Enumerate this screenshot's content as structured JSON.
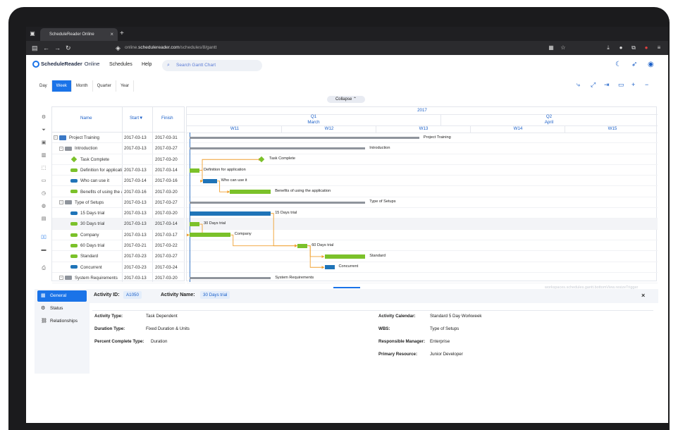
{
  "browser": {
    "tab_title": "ScheduleReader Online",
    "tab_close": "×",
    "new_tab": "+",
    "url_prefix": "online.",
    "url_domain": "schedulereader.com",
    "url_path": "/schedules/8/gantt"
  },
  "app": {
    "logo_bold": "ScheduleReader",
    "logo_light": "Online",
    "menu": [
      "Schedules",
      "Help"
    ],
    "search_placeholder": "Search Gantt Chart"
  },
  "views": [
    "Day",
    "Week",
    "Month",
    "Quarter",
    "Year"
  ],
  "active_view": "Week",
  "collapse_label": "Collapse",
  "grid": {
    "headers": {
      "name": "Name",
      "start": "Start▼",
      "finish": "Finish"
    },
    "rows": [
      {
        "name": "Project Training",
        "start": "2017-03-13",
        "finish": "2017-03-31",
        "icon": "folder"
      },
      {
        "name": "Introduction",
        "start": "2017-03-13",
        "finish": "2017-03-27",
        "icon": "summary"
      },
      {
        "name": "Task Complete",
        "start": "",
        "finish": "2017-03-20",
        "icon": "milestone"
      },
      {
        "name": "Definition for application",
        "start": "2017-03-13",
        "finish": "2017-03-14",
        "icon": "green"
      },
      {
        "name": "Who can use it",
        "start": "2017-03-14",
        "finish": "2017-03-16",
        "icon": "blue"
      },
      {
        "name": "Benefits of using the application",
        "start": "2017-03-16",
        "finish": "2017-03-20",
        "icon": "green"
      },
      {
        "name": "Type of Setups",
        "start": "2017-03-13",
        "finish": "2017-03-27",
        "icon": "summary"
      },
      {
        "name": "15 Days trial",
        "start": "2017-03-13",
        "finish": "2017-03-20",
        "icon": "blue"
      },
      {
        "name": "30 Days trial",
        "start": "2017-03-13",
        "finish": "2017-03-14",
        "icon": "green"
      },
      {
        "name": "Company",
        "start": "2017-03-13",
        "finish": "2017-03-17",
        "icon": "green"
      },
      {
        "name": "60 Days trial",
        "start": "2017-03-21",
        "finish": "2017-03-22",
        "icon": "green"
      },
      {
        "name": "Standard",
        "start": "2017-03-23",
        "finish": "2017-03-27",
        "icon": "green"
      },
      {
        "name": "Concurrent",
        "start": "2017-03-23",
        "finish": "2017-03-24",
        "icon": "blue"
      },
      {
        "name": "System Requirements",
        "start": "2017-03-13",
        "finish": "2017-03-20",
        "icon": "summary"
      }
    ]
  },
  "timeline": {
    "year": "2017",
    "quarters": [
      {
        "q": "Q1",
        "m": "March"
      },
      {
        "q": "Q2",
        "m": "April"
      }
    ],
    "weeks": [
      "W11",
      "W12",
      "W13",
      "W14",
      "W15"
    ]
  },
  "bar_labels": [
    "Project Training",
    "Introduction",
    "Task Complete",
    "Definition for application",
    "Who can use it",
    "Benefits of using the application",
    "Type of Setups",
    "15 Days trial",
    "30 Days trial",
    "Company",
    "60 Days trial",
    "Standard",
    "Concurrent",
    "System Requirements"
  ],
  "watermark": "workspaces.schedules.gantt.bottomView.resizeTrigger",
  "panel": {
    "tabs": [
      "General",
      "Status",
      "Relationships"
    ],
    "activity_id_label": "Activity ID:",
    "activity_id": "A1050",
    "activity_name_label": "Activity Name:",
    "activity_name": "30 Days trial",
    "close": "×",
    "left_props": [
      {
        "label": "Activity Type:",
        "value": "Task Dependent"
      },
      {
        "label": "Duration Type:",
        "value": "Fixed Duration & Units"
      },
      {
        "label": "Percent Complete Type:",
        "value": "Duration"
      }
    ],
    "right_props": [
      {
        "label": "Activity Calendar:",
        "value": "Standard 5 Day Workweek"
      },
      {
        "label": "WBS:",
        "value": "Type of Setups"
      },
      {
        "label": "Responsible Manager:",
        "value": "Enterprise"
      },
      {
        "label": "Primary Resource:",
        "value": "Junior Developer"
      }
    ]
  },
  "colors": {
    "accent": "#1a73e8",
    "task_green": "#7bc12a",
    "task_blue": "#1f74b8",
    "summary_gray": "#8f949c",
    "link_orange": "#f0a030"
  }
}
